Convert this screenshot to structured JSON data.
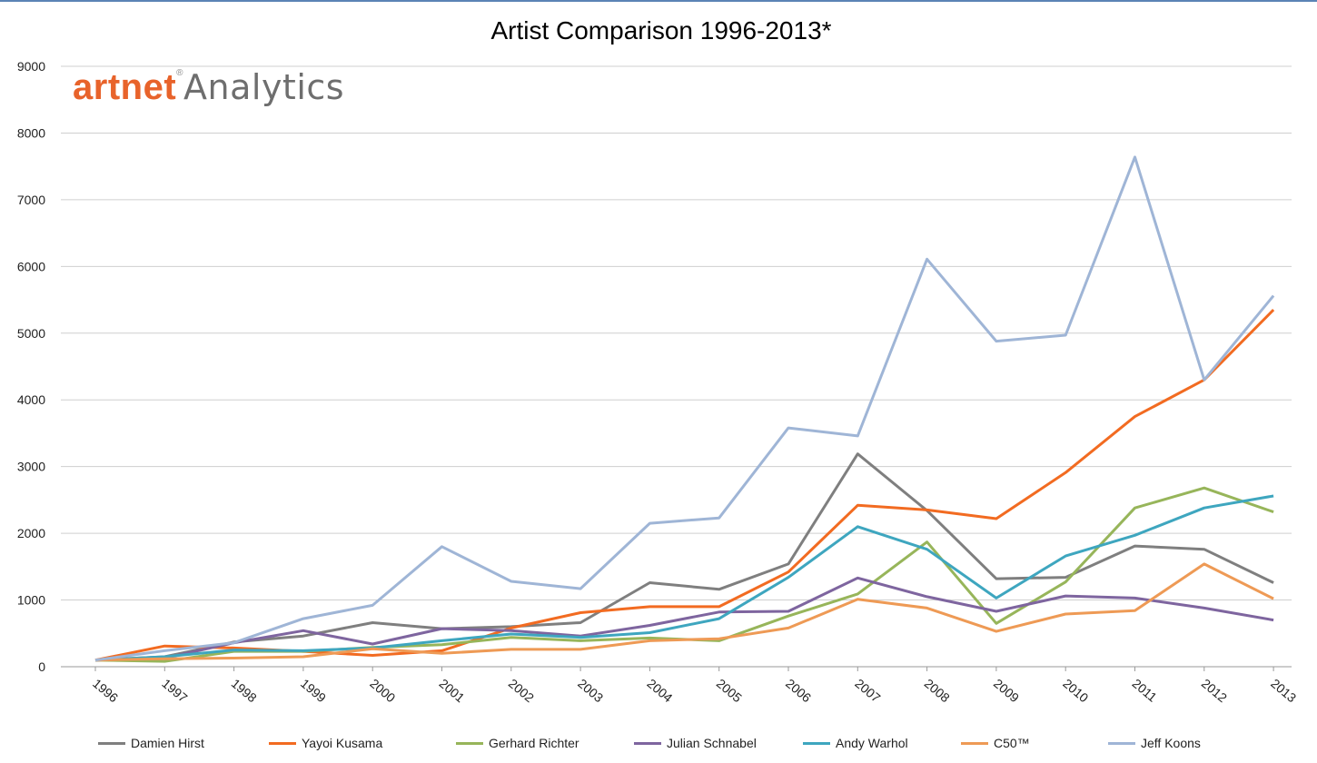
{
  "logo": {
    "part1": "artnet",
    "reg": "®",
    "part2": "Analytics"
  },
  "chart_data": {
    "type": "line",
    "title": "Artist Comparison 1996-2013*",
    "xlabel": "",
    "ylabel": "",
    "ylim": [
      0,
      9000
    ],
    "yticks": [
      0,
      1000,
      2000,
      3000,
      4000,
      5000,
      6000,
      7000,
      8000,
      9000
    ],
    "grid": true,
    "legend_position": "bottom",
    "categories": [
      "1996",
      "1997",
      "1998",
      "1999",
      "2000",
      "2001",
      "2002",
      "2003",
      "2004",
      "2005",
      "2006",
      "2007",
      "2008",
      "2009",
      "2010",
      "2011",
      "2012",
      "2013"
    ],
    "series": [
      {
        "name": "Damien Hirst",
        "color": "#7f7f7f",
        "values": [
          100,
          150,
          370,
          460,
          660,
          570,
          600,
          660,
          1260,
          1160,
          1540,
          3190,
          2340,
          1320,
          1340,
          1810,
          1760,
          1260
        ]
      },
      {
        "name": "Yayoi Kusama",
        "color": "#f26b21",
        "values": [
          100,
          310,
          280,
          230,
          170,
          240,
          580,
          810,
          900,
          900,
          1420,
          2420,
          2350,
          2220,
          2910,
          3750,
          4300,
          5350
        ]
      },
      {
        "name": "Gerhard Richter",
        "color": "#97b55a",
        "values": [
          100,
          80,
          230,
          230,
          290,
          330,
          440,
          390,
          430,
          390,
          760,
          1090,
          1870,
          650,
          1270,
          2380,
          2680,
          2320
        ]
      },
      {
        "name": "Julian Schnabel",
        "color": "#7e659f",
        "values": [
          100,
          130,
          360,
          540,
          340,
          570,
          540,
          460,
          620,
          820,
          830,
          1330,
          1050,
          830,
          1060,
          1030,
          880,
          700
        ]
      },
      {
        "name": "Andy Warhol",
        "color": "#3ea6bf",
        "values": [
          100,
          150,
          250,
          240,
          280,
          390,
          490,
          440,
          510,
          720,
          1340,
          2100,
          1760,
          1030,
          1660,
          1970,
          2380,
          2560
        ]
      },
      {
        "name": "C50™",
        "color": "#ee9a55",
        "values": [
          100,
          120,
          130,
          150,
          270,
          200,
          260,
          260,
          390,
          420,
          580,
          1010,
          880,
          530,
          790,
          840,
          1540,
          1020
        ]
      },
      {
        "name": "Jeff Koons",
        "color": "#9fb5d6",
        "values": [
          100,
          240,
          360,
          720,
          920,
          1800,
          1280,
          1170,
          2150,
          2230,
          3580,
          3460,
          6110,
          4880,
          4970,
          7640,
          4300,
          5560
        ]
      }
    ]
  }
}
